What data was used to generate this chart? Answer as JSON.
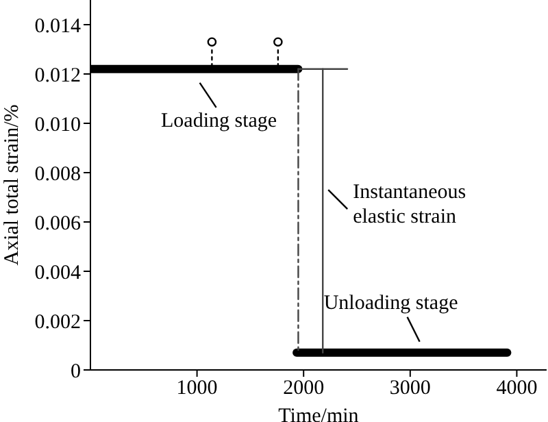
{
  "chart_data": {
    "type": "line",
    "xlabel": "Time/min",
    "ylabel": "Axial total strain/%",
    "xlim": [
      0,
      4280
    ],
    "xticks": [
      1000,
      2000,
      3000,
      4000
    ],
    "ylim": [
      0,
      0.015
    ],
    "yticks": [
      0,
      0.002,
      0.004,
      0.006,
      0.008,
      {
        "value": 0.01,
        "label": "0.010"
      },
      0.012,
      0.014
    ],
    "marker": "none",
    "series": [
      {
        "color": "#000000",
        "x": [
          0,
          1950
        ],
        "values": [
          0.0122,
          0.0122
        ]
      },
      {
        "color": "#000000",
        "x": [
          1935,
          3910
        ],
        "values": [
          0.0007,
          0.0007
        ]
      },
      {
        "color": "#444444",
        "x": [
          1950,
          1950
        ],
        "values": [
          0.0122,
          0.0007
        ],
        "line_style": "dashed"
      },
      {
        "color": "#444444",
        "x": [
          1950,
          2410
        ],
        "values": [
          0.0122,
          0.0122
        ]
      },
      {
        "color": "#444444",
        "x": [
          2180,
          2180
        ],
        "values": [
          0.0122,
          0.0007
        ]
      },
      {
        "color": "#000000",
        "x": [
          1140,
          1140
        ],
        "values": [
          0.0123,
          0.0131
        ],
        "line_style": "dotted"
      },
      {
        "color": "#000000",
        "x": [
          1760,
          1760
        ],
        "values": [
          0.0123,
          0.0131
        ],
        "line_style": "dotted"
      },
      {
        "type": "scatter",
        "color": "#000000",
        "x": [
          1140,
          1760
        ],
        "values": [
          0.0133,
          0.0133
        ],
        "marker": "circle"
      }
    ],
    "annotations": [
      {
        "text": "Loading stage",
        "x": 1000,
        "y": 0.0122
      },
      {
        "text": "Instantaneous\nelastic strain",
        "x": 2180,
        "y": 0.0073
      },
      {
        "text": "Unloading stage",
        "x": 3050,
        "y": 0.0007
      }
    ]
  }
}
